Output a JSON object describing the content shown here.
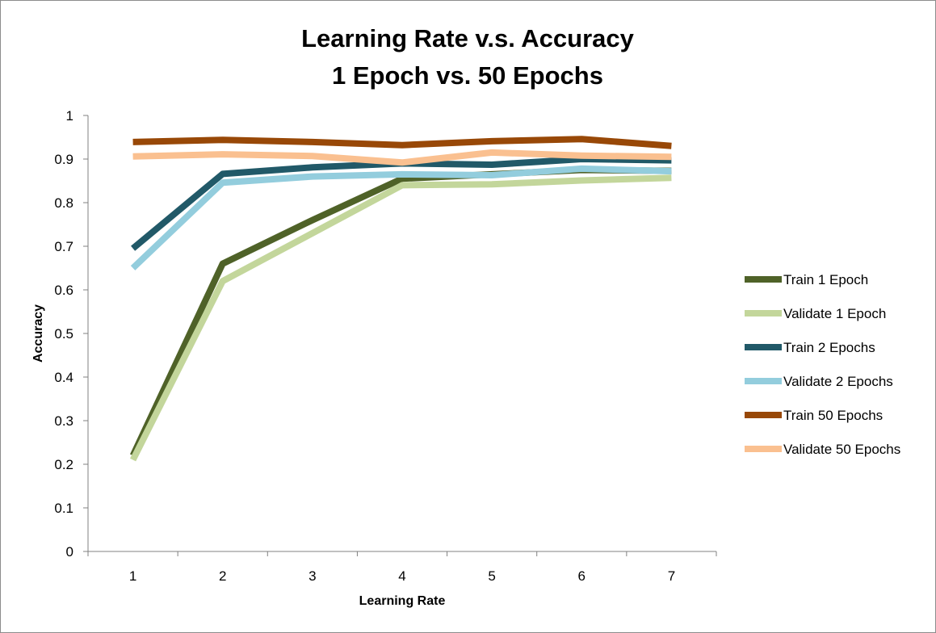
{
  "chart_data": {
    "type": "line",
    "title_lines": [
      "Learning Rate v.s. Accuracy",
      "1 Epoch vs. 50 Epochs"
    ],
    "xlabel": "Learning Rate",
    "ylabel": "Accuracy",
    "categories": [
      "1",
      "2",
      "3",
      "4",
      "5",
      "6",
      "7"
    ],
    "ylim": [
      0,
      1
    ],
    "yticks": [
      0,
      0.1,
      0.2,
      0.3,
      0.4,
      0.5,
      0.6,
      0.7,
      0.8,
      0.9,
      1
    ],
    "ytick_labels": [
      "0",
      "0.1",
      "0.2",
      "0.3",
      "0.4",
      "0.5",
      "0.6",
      "0.7",
      "0.8",
      "0.9",
      "1"
    ],
    "grid": false,
    "legend_position": "right",
    "series": [
      {
        "name": "Train 1 Epoch",
        "color": "#4f6228",
        "values": [
          0.22,
          0.66,
          0.76,
          0.855,
          0.865,
          0.875,
          0.873
        ]
      },
      {
        "name": "Validate 1 Epoch",
        "color": "#c3d69b",
        "values": [
          0.21,
          0.62,
          0.73,
          0.84,
          0.842,
          0.851,
          0.857
        ]
      },
      {
        "name": "Train 2 Epochs",
        "color": "#215968",
        "values": [
          0.695,
          0.866,
          0.881,
          0.89,
          0.887,
          0.9,
          0.897
        ]
      },
      {
        "name": "Validate 2 Epochs",
        "color": "#93cddd",
        "values": [
          0.65,
          0.846,
          0.86,
          0.865,
          0.863,
          0.878,
          0.872
        ]
      },
      {
        "name": "Train 50 Epochs",
        "color": "#984807",
        "values": [
          0.939,
          0.944,
          0.939,
          0.932,
          0.941,
          0.946,
          0.93
        ]
      },
      {
        "name": "Validate 50 Epochs",
        "color": "#fac090",
        "values": [
          0.906,
          0.911,
          0.907,
          0.892,
          0.915,
          0.908,
          0.905
        ]
      }
    ]
  }
}
